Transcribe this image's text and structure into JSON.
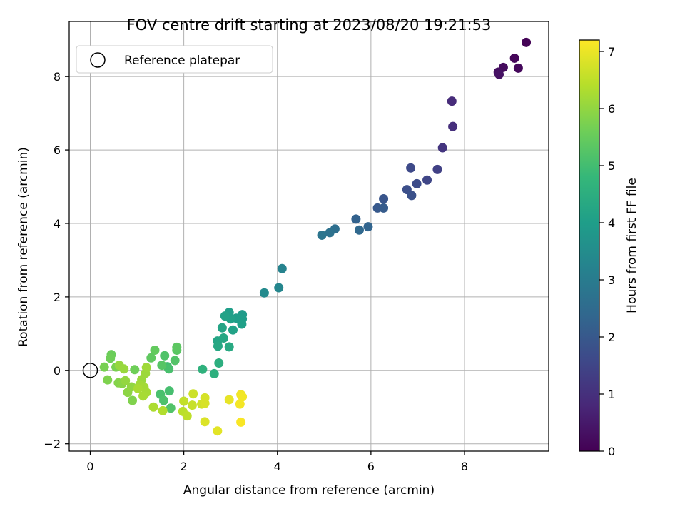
{
  "chart_data": {
    "type": "scatter",
    "title": "FOV centre drift starting at 2023/08/20 19:21:53",
    "xlabel": "Angular distance from reference (arcmin)",
    "ylabel": "Rotation from reference (arcmin)",
    "xlim": [
      -0.45,
      9.8
    ],
    "ylim": [
      -2.2,
      9.5
    ],
    "xticks": [
      0,
      2,
      4,
      6,
      8
    ],
    "yticks": [
      -2,
      0,
      2,
      4,
      6,
      8
    ],
    "grid": true,
    "legend": {
      "placement": "top-left",
      "entries": [
        "Reference platepar"
      ]
    },
    "reference_point": {
      "x": 0,
      "y": 0,
      "label": "Reference platepar"
    },
    "colorbar": {
      "label": "Hours from first FF file",
      "colormap": "viridis",
      "range": [
        0,
        7.2
      ],
      "ticks": [
        0,
        1,
        2,
        3,
        4,
        5,
        6,
        7
      ]
    },
    "series": [
      {
        "points": [
          {
            "x": 9.32,
            "y": 8.93,
            "c": 0.05
          },
          {
            "x": 9.07,
            "y": 8.5,
            "c": 0.1
          },
          {
            "x": 9.15,
            "y": 8.23,
            "c": 0.15
          },
          {
            "x": 8.83,
            "y": 8.25,
            "c": 0.22
          },
          {
            "x": 8.72,
            "y": 8.12,
            "c": 0.28
          },
          {
            "x": 8.74,
            "y": 8.06,
            "c": 0.35
          },
          {
            "x": 7.73,
            "y": 7.33,
            "c": 0.9
          },
          {
            "x": 7.75,
            "y": 6.64,
            "c": 0.98
          },
          {
            "x": 7.53,
            "y": 6.06,
            "c": 1.12
          },
          {
            "x": 7.42,
            "y": 5.47,
            "c": 1.4
          },
          {
            "x": 7.2,
            "y": 5.18,
            "c": 1.52
          },
          {
            "x": 6.85,
            "y": 5.51,
            "c": 1.62
          },
          {
            "x": 6.98,
            "y": 5.08,
            "c": 1.68
          },
          {
            "x": 6.77,
            "y": 4.92,
            "c": 1.75
          },
          {
            "x": 6.87,
            "y": 4.76,
            "c": 1.8
          },
          {
            "x": 6.27,
            "y": 4.67,
            "c": 1.92
          },
          {
            "x": 6.14,
            "y": 4.42,
            "c": 2.02
          },
          {
            "x": 6.27,
            "y": 4.42,
            "c": 2.08
          },
          {
            "x": 5.68,
            "y": 4.12,
            "c": 2.25
          },
          {
            "x": 5.94,
            "y": 3.91,
            "c": 2.33
          },
          {
            "x": 5.75,
            "y": 3.82,
            "c": 2.42
          },
          {
            "x": 5.23,
            "y": 3.85,
            "c": 2.62
          },
          {
            "x": 5.12,
            "y": 3.75,
            "c": 2.7
          },
          {
            "x": 4.95,
            "y": 3.68,
            "c": 2.8
          },
          {
            "x": 4.1,
            "y": 2.77,
            "c": 3.22
          },
          {
            "x": 4.03,
            "y": 2.25,
            "c": 3.32
          },
          {
            "x": 3.72,
            "y": 2.11,
            "c": 3.42
          },
          {
            "x": 3.25,
            "y": 1.52,
            "c": 3.92
          },
          {
            "x": 3.25,
            "y": 1.4,
            "c": 3.98
          },
          {
            "x": 3.24,
            "y": 1.26,
            "c": 4.05
          },
          {
            "x": 3.12,
            "y": 1.42,
            "c": 4.0
          },
          {
            "x": 3.0,
            "y": 1.4,
            "c": 4.08
          },
          {
            "x": 2.97,
            "y": 1.58,
            "c": 4.02
          },
          {
            "x": 2.88,
            "y": 1.48,
            "c": 4.12
          },
          {
            "x": 3.05,
            "y": 1.1,
            "c": 4.12
          },
          {
            "x": 2.82,
            "y": 1.16,
            "c": 4.2
          },
          {
            "x": 2.72,
            "y": 0.8,
            "c": 4.22
          },
          {
            "x": 2.85,
            "y": 0.88,
            "c": 4.28
          },
          {
            "x": 2.73,
            "y": 0.66,
            "c": 4.3
          },
          {
            "x": 2.97,
            "y": 0.64,
            "c": 4.35
          },
          {
            "x": 2.75,
            "y": 0.2,
            "c": 4.5
          },
          {
            "x": 2.4,
            "y": 0.03,
            "c": 4.6
          },
          {
            "x": 2.65,
            "y": -0.09,
            "c": 4.55
          },
          {
            "x": 1.65,
            "y": 0.1,
            "c": 5.0
          },
          {
            "x": 1.68,
            "y": 0.04,
            "c": 5.08
          },
          {
            "x": 1.59,
            "y": 0.4,
            "c": 5.18
          },
          {
            "x": 1.81,
            "y": 0.27,
            "c": 5.22
          },
          {
            "x": 1.53,
            "y": 0.14,
            "c": 5.28
          },
          {
            "x": 1.69,
            "y": -0.56,
            "c": 5.05
          },
          {
            "x": 1.5,
            "y": -0.65,
            "c": 5.1
          },
          {
            "x": 1.57,
            "y": -0.82,
            "c": 5.15
          },
          {
            "x": 1.72,
            "y": -1.03,
            "c": 5.2
          },
          {
            "x": 1.85,
            "y": 0.55,
            "c": 5.32
          },
          {
            "x": 1.85,
            "y": 0.63,
            "c": 5.36
          },
          {
            "x": 1.38,
            "y": 0.55,
            "c": 5.45
          },
          {
            "x": 1.3,
            "y": 0.34,
            "c": 5.4
          },
          {
            "x": 0.95,
            "y": 0.02,
            "c": 5.6
          },
          {
            "x": 0.45,
            "y": 0.43,
            "c": 5.55
          },
          {
            "x": 0.43,
            "y": 0.33,
            "c": 5.6
          },
          {
            "x": 0.3,
            "y": 0.09,
            "c": 5.7
          },
          {
            "x": 0.55,
            "y": 0.09,
            "c": 5.72
          },
          {
            "x": 0.37,
            "y": -0.26,
            "c": 5.78
          },
          {
            "x": 0.6,
            "y": -0.34,
            "c": 5.85
          },
          {
            "x": 0.68,
            "y": -0.36,
            "c": 5.9
          },
          {
            "x": 0.9,
            "y": -0.82,
            "c": 5.8
          },
          {
            "x": 0.8,
            "y": -0.6,
            "c": 5.95
          },
          {
            "x": 0.88,
            "y": -0.45,
            "c": 6.0
          },
          {
            "x": 0.75,
            "y": -0.28,
            "c": 6.02
          },
          {
            "x": 0.62,
            "y": 0.14,
            "c": 6.05
          },
          {
            "x": 0.72,
            "y": 0.04,
            "c": 6.08
          },
          {
            "x": 1.1,
            "y": -0.25,
            "c": 6.1
          },
          {
            "x": 1.18,
            "y": -0.08,
            "c": 6.12
          },
          {
            "x": 1.2,
            "y": 0.08,
            "c": 6.15
          },
          {
            "x": 1.06,
            "y": -0.39,
            "c": 6.18
          },
          {
            "x": 1.15,
            "y": -0.46,
            "c": 6.2
          },
          {
            "x": 1.2,
            "y": -0.6,
            "c": 6.22
          },
          {
            "x": 1.13,
            "y": -0.7,
            "c": 6.24
          },
          {
            "x": 1.02,
            "y": -0.5,
            "c": 6.26
          },
          {
            "x": 1.35,
            "y": -1.0,
            "c": 6.3
          },
          {
            "x": 1.55,
            "y": -1.1,
            "c": 6.35
          },
          {
            "x": 1.98,
            "y": -1.12,
            "c": 6.45
          },
          {
            "x": 2.07,
            "y": -1.24,
            "c": 6.5
          },
          {
            "x": 2.0,
            "y": -0.84,
            "c": 6.55
          },
          {
            "x": 2.18,
            "y": -0.95,
            "c": 6.6
          },
          {
            "x": 2.2,
            "y": -0.64,
            "c": 6.65
          },
          {
            "x": 2.38,
            "y": -0.92,
            "c": 6.7
          },
          {
            "x": 2.45,
            "y": -0.75,
            "c": 6.75
          },
          {
            "x": 2.45,
            "y": -0.9,
            "c": 6.78
          },
          {
            "x": 2.45,
            "y": -1.4,
            "c": 6.82
          },
          {
            "x": 2.72,
            "y": -1.65,
            "c": 6.9
          },
          {
            "x": 2.97,
            "y": -0.8,
            "c": 6.95
          },
          {
            "x": 3.22,
            "y": -0.66,
            "c": 7.05
          },
          {
            "x": 3.25,
            "y": -0.72,
            "c": 7.08
          },
          {
            "x": 3.2,
            "y": -0.92,
            "c": 7.1
          },
          {
            "x": 3.22,
            "y": -1.41,
            "c": 7.15
          }
        ]
      }
    ]
  }
}
